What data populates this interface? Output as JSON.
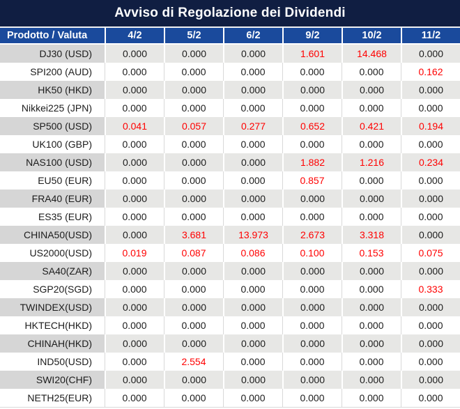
{
  "title": "Avviso di Regolazione dei Dividendi",
  "colors": {
    "title_bg": "#101e42",
    "header_bg": "#1a4a9c",
    "gray_row_bg": "#e7e7e5",
    "gray_row_label_bg": "#d6d6d6",
    "negative_value": "#ff0000",
    "text": "#1c1c1c"
  },
  "table": {
    "header": [
      "Prodotto / Valuta",
      "4/2",
      "5/2",
      "6/2",
      "9/2",
      "10/2",
      "11/2"
    ],
    "rows": [
      {
        "product": "DJ30 (USD)",
        "values": [
          "0.000",
          "0.000",
          "0.000",
          "1.601",
          "14.468",
          "0.000"
        ],
        "red": [
          3,
          4
        ]
      },
      {
        "product": "SPI200 (AUD)",
        "values": [
          "0.000",
          "0.000",
          "0.000",
          "0.000",
          "0.000",
          "0.162"
        ],
        "red": [
          5
        ]
      },
      {
        "product": "HK50 (HKD)",
        "values": [
          "0.000",
          "0.000",
          "0.000",
          "0.000",
          "0.000",
          "0.000"
        ],
        "red": []
      },
      {
        "product": "Nikkei225 (JPN)",
        "values": [
          "0.000",
          "0.000",
          "0.000",
          "0.000",
          "0.000",
          "0.000"
        ],
        "red": []
      },
      {
        "product": "SP500 (USD)",
        "values": [
          "0.041",
          "0.057",
          "0.277",
          "0.652",
          "0.421",
          "0.194"
        ],
        "red": [
          0,
          1,
          2,
          3,
          4,
          5
        ]
      },
      {
        "product": "UK100 (GBP)",
        "values": [
          "0.000",
          "0.000",
          "0.000",
          "0.000",
          "0.000",
          "0.000"
        ],
        "red": []
      },
      {
        "product": "NAS100 (USD)",
        "values": [
          "0.000",
          "0.000",
          "0.000",
          "1.882",
          "1.216",
          "0.234"
        ],
        "red": [
          3,
          4,
          5
        ]
      },
      {
        "product": "EU50 (EUR)",
        "values": [
          "0.000",
          "0.000",
          "0.000",
          "0.857",
          "0.000",
          "0.000"
        ],
        "red": [
          3
        ]
      },
      {
        "product": "FRA40 (EUR)",
        "values": [
          "0.000",
          "0.000",
          "0.000",
          "0.000",
          "0.000",
          "0.000"
        ],
        "red": []
      },
      {
        "product": "ES35 (EUR)",
        "values": [
          "0.000",
          "0.000",
          "0.000",
          "0.000",
          "0.000",
          "0.000"
        ],
        "red": []
      },
      {
        "product": "CHINA50(USD)",
        "values": [
          "0.000",
          "3.681",
          "13.973",
          "2.673",
          "3.318",
          "0.000"
        ],
        "red": [
          1,
          2,
          3,
          4
        ]
      },
      {
        "product": "US2000(USD)",
        "values": [
          "0.019",
          "0.087",
          "0.086",
          "0.100",
          "0.153",
          "0.075"
        ],
        "red": [
          0,
          1,
          2,
          3,
          4,
          5
        ]
      },
      {
        "product": "SA40(ZAR)",
        "values": [
          "0.000",
          "0.000",
          "0.000",
          "0.000",
          "0.000",
          "0.000"
        ],
        "red": []
      },
      {
        "product": "SGP20(SGD)",
        "values": [
          "0.000",
          "0.000",
          "0.000",
          "0.000",
          "0.000",
          "0.333"
        ],
        "red": [
          5
        ]
      },
      {
        "product": "TWINDEX(USD)",
        "values": [
          "0.000",
          "0.000",
          "0.000",
          "0.000",
          "0.000",
          "0.000"
        ],
        "red": []
      },
      {
        "product": "HKTECH(HKD)",
        "values": [
          "0.000",
          "0.000",
          "0.000",
          "0.000",
          "0.000",
          "0.000"
        ],
        "red": []
      },
      {
        "product": "CHINAH(HKD)",
        "values": [
          "0.000",
          "0.000",
          "0.000",
          "0.000",
          "0.000",
          "0.000"
        ],
        "red": []
      },
      {
        "product": "IND50(USD)",
        "values": [
          "0.000",
          "2.554",
          "0.000",
          "0.000",
          "0.000",
          "0.000"
        ],
        "red": [
          1
        ]
      },
      {
        "product": "SWI20(CHF)",
        "values": [
          "0.000",
          "0.000",
          "0.000",
          "0.000",
          "0.000",
          "0.000"
        ],
        "red": []
      },
      {
        "product": "NETH25(EUR)",
        "values": [
          "0.000",
          "0.000",
          "0.000",
          "0.000",
          "0.000",
          "0.000"
        ],
        "red": []
      }
    ]
  }
}
